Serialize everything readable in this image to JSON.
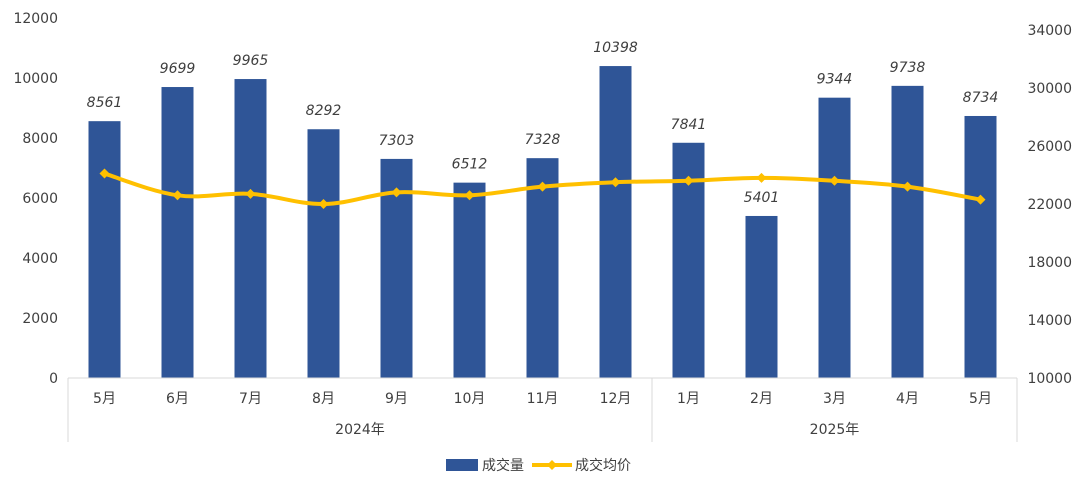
{
  "chart_data": {
    "type": "bar",
    "categories": [
      "5月",
      "6月",
      "7月",
      "8月",
      "9月",
      "10月",
      "11月",
      "12月",
      "1月",
      "2月",
      "3月",
      "4月",
      "5月"
    ],
    "groups": [
      {
        "label": "2024年",
        "from": 0,
        "to": 7
      },
      {
        "label": "2025年",
        "from": 8,
        "to": 12
      }
    ],
    "series": [
      {
        "name": "成交量",
        "type": "bar",
        "axis": "left",
        "color": "#2f5597",
        "values": [
          8561,
          9699,
          9965,
          8292,
          7303,
          6512,
          7328,
          10398,
          7841,
          5401,
          9344,
          9738,
          8734
        ],
        "labels": [
          "8561",
          "9699",
          "9965",
          "8292",
          "7303",
          "6512",
          "7328",
          "10398",
          "7841",
          "5401",
          "9344",
          "9738",
          "8734"
        ]
      },
      {
        "name": "成交均价",
        "type": "line",
        "axis": "right",
        "color": "#ffc000",
        "values": [
          24100,
          22600,
          22700,
          22000,
          22800,
          22600,
          23200,
          23500,
          23600,
          23800,
          23600,
          23200,
          22300
        ]
      }
    ],
    "y_left": {
      "min": 0,
      "max": 12000,
      "ticks": [
        "0",
        "2000",
        "4000",
        "6000",
        "8000",
        "10000",
        "12000"
      ]
    },
    "y_right": {
      "min": 10000,
      "max": 34000,
      "ticks": [
        "10000",
        "14000",
        "18000",
        "22000",
        "26000",
        "30000",
        "34000"
      ]
    },
    "grid": false,
    "legend_position": "bottom"
  }
}
